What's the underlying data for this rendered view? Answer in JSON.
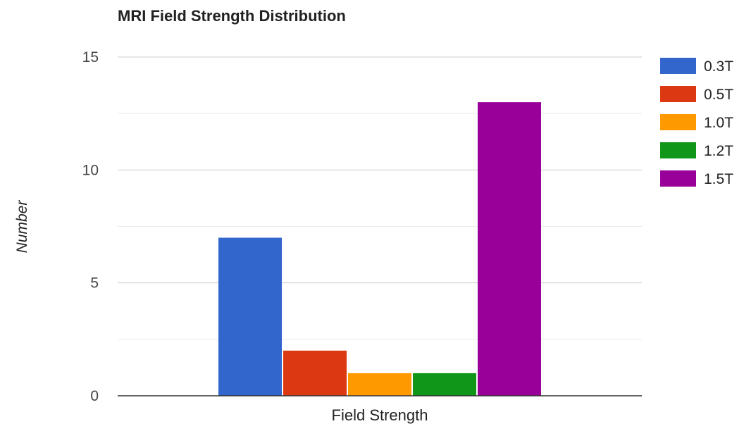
{
  "chart_data": {
    "type": "bar",
    "title": "MRI Field Strength Distribution",
    "xlabel": "Field Strength",
    "ylabel": "Number",
    "categories": [
      ""
    ],
    "series": [
      {
        "name": "0.3T",
        "values": [
          7
        ],
        "color": "#3366cc"
      },
      {
        "name": "0.5T",
        "values": [
          2
        ],
        "color": "#dc3912"
      },
      {
        "name": "1.0T",
        "values": [
          1
        ],
        "color": "#ff9900"
      },
      {
        "name": "1.2T",
        "values": [
          1
        ],
        "color": "#109618"
      },
      {
        "name": "1.5T",
        "values": [
          13
        ],
        "color": "#990099"
      }
    ],
    "ylim": [
      0,
      15
    ],
    "yticks": [
      0,
      5,
      10,
      15
    ],
    "minor_gridlines": true,
    "grid": true,
    "legend_position": "right"
  }
}
